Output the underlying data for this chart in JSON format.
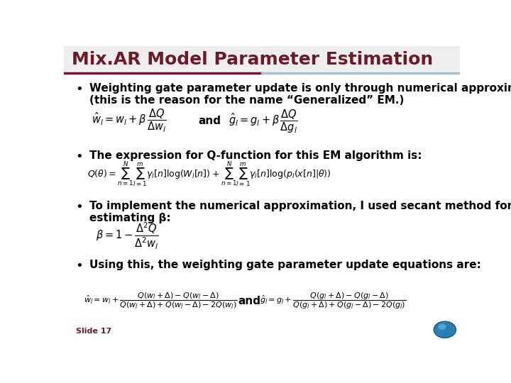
{
  "title": "Mix.AR Model Parameter Estimation",
  "title_color": "#6B1A2A",
  "title_fontsize": 18,
  "header_line_color_left": "#6B1A2A",
  "header_line_color_right": "#A8C0D0",
  "bg_color": "#FFFFFF",
  "slide_label": "Slide 17",
  "slide_label_color": "#6B1A2A",
  "bullet_color": "#000000",
  "bullet_fontsize": 11,
  "bullets": [
    "Weighting gate parameter update is only through numerical approximation\n(this is the reason for the name “Generalized” EM.)",
    "The expression for Q-function for this EM algorithm is:",
    "To implement the numerical approximation, I used secant method for\nestimating β:",
    "Using this, the weighting gate parameter update equations are:"
  ]
}
